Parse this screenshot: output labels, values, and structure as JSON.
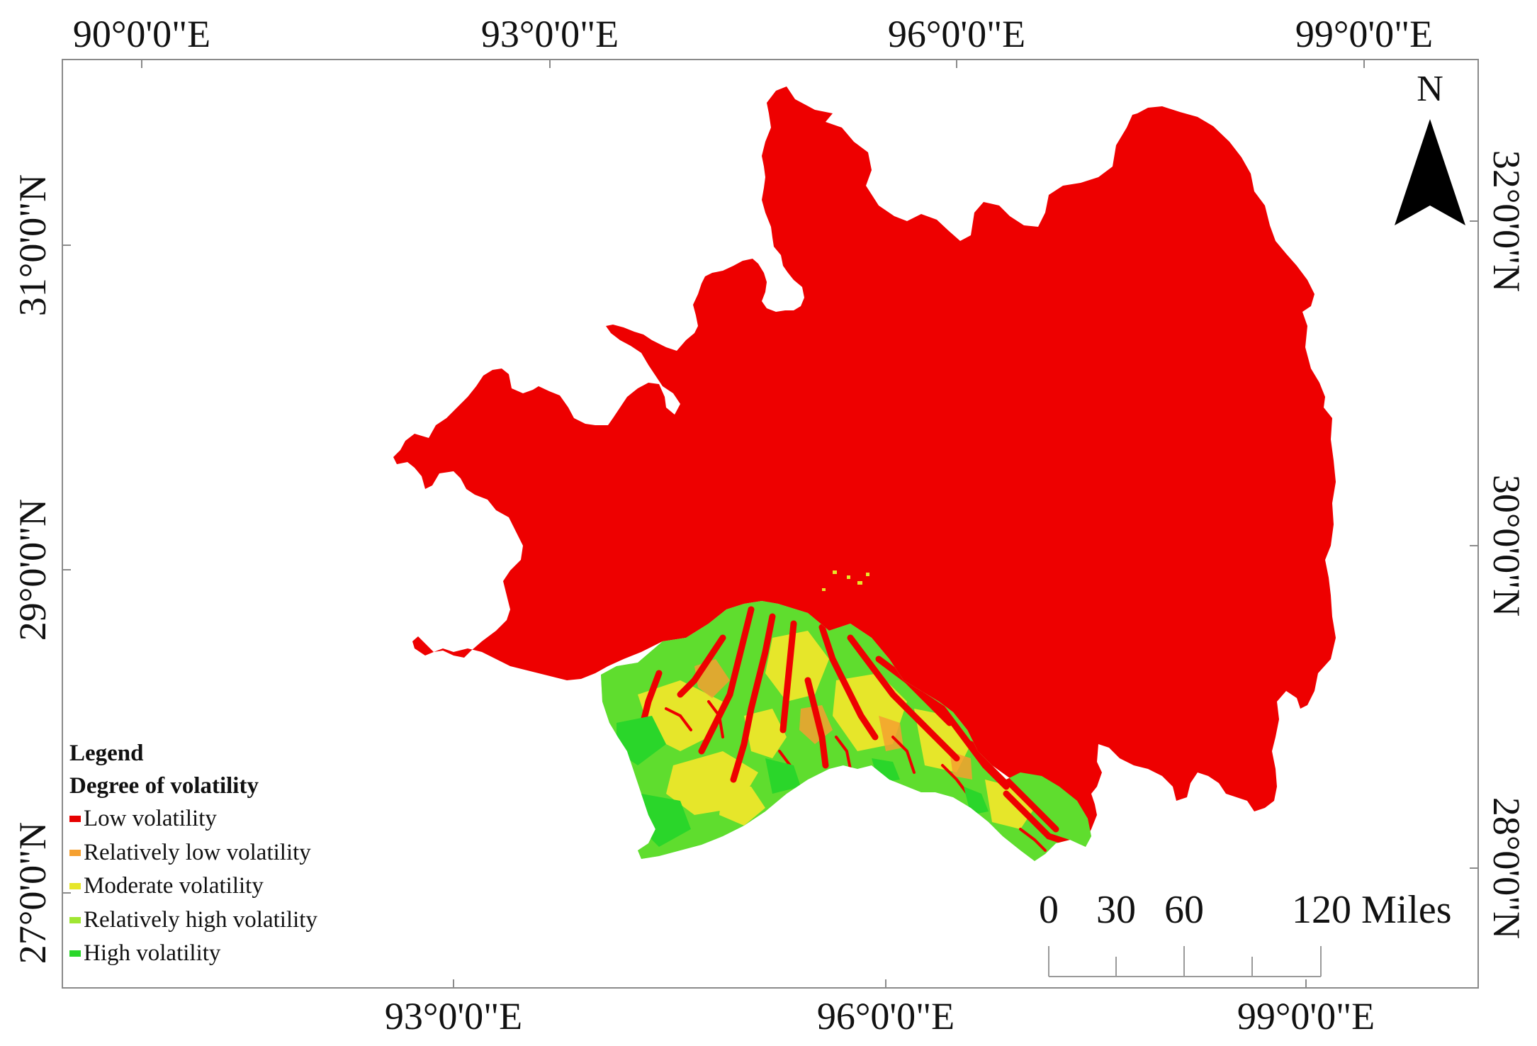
{
  "map": {
    "top_axis": [
      "90°0'0\"E",
      "93°0'0\"E",
      "96°0'0\"E",
      "99°0'0\"E"
    ],
    "bottom_axis": [
      "93°0'0\"E",
      "96°0'0\"E",
      "99°0'0\"E"
    ],
    "left_axis": [
      "31°0'0\"N",
      "29°0'0\"N",
      "27°0'0\"N"
    ],
    "right_axis": [
      "32°0'0\"N",
      "30°0'0\"N",
      "28°0'0\"N"
    ],
    "north_arrow": {
      "label": "N",
      "icon": "north-arrow-icon"
    },
    "scale_bar": {
      "ticks": [
        "0",
        "30",
        "60",
        "120 Miles"
      ]
    },
    "legend": {
      "title": "Legend",
      "subtitle": "Degree of volatility",
      "items": [
        {
          "label": "Low volatility",
          "color": "#e60000"
        },
        {
          "label": "Relatively low volatility",
          "color": "#f5a030"
        },
        {
          "label": "Moderate volatility",
          "color": "#e6e62a"
        },
        {
          "label": "Relatively high volatility",
          "color": "#a0e632"
        },
        {
          "label": "High volatility",
          "color": "#2ad62a"
        }
      ]
    },
    "colors": {
      "low": "#ee0000",
      "relatively_low": "#f5a030",
      "moderate": "#e6e62a",
      "relatively_high": "#a0e632",
      "high": "#2ad62a"
    }
  }
}
